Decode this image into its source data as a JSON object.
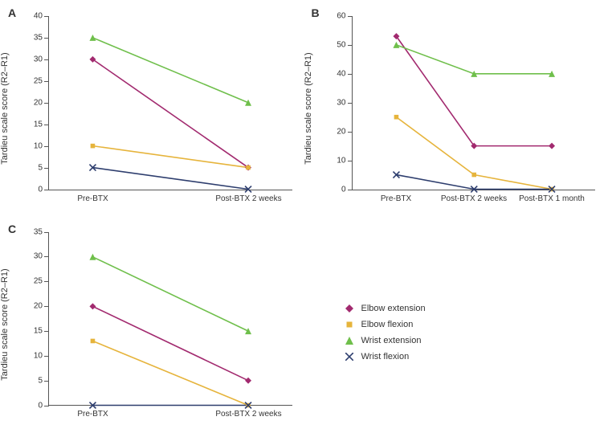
{
  "figure": {
    "background_color": "#ffffff",
    "axis_color": "#555555",
    "tick_fontsize": 10,
    "axis_label_fontsize": 11,
    "panel_label_fontsize": 14,
    "line_width": 1.6,
    "marker_size": 8
  },
  "series_styles": {
    "elbow_extension": {
      "label": "Elbow extension",
      "color": "#a22a6f",
      "marker": "diamond"
    },
    "elbow_flexion": {
      "label": "Elbow flexion",
      "color": "#e6b43c",
      "marker": "square"
    },
    "wrist_extension": {
      "label": "Wrist extension",
      "color": "#6fbf4b",
      "marker": "triangle"
    },
    "wrist_flexion": {
      "label": "Wrist flexion",
      "color": "#2e3e6e",
      "marker": "x"
    }
  },
  "panels": {
    "A": {
      "label": "A",
      "y_label": "Tardieu scale score (R2–R1)",
      "ylim": [
        0,
        40
      ],
      "ytick_step": 5,
      "x_categories": [
        "Pre-BTX",
        "Post-BTX 2 weeks"
      ],
      "series": {
        "elbow_extension": [
          30,
          5
        ],
        "elbow_flexion": [
          10,
          5
        ],
        "wrist_extension": [
          35,
          20
        ],
        "wrist_flexion": [
          5,
          0
        ]
      }
    },
    "B": {
      "label": "B",
      "y_label": "Tardieu scale score (R2–R1)",
      "ylim": [
        0,
        60
      ],
      "ytick_step": 10,
      "x_categories": [
        "Pre-BTX",
        "Post-BTX 2 weeks",
        "Post-BTX 1 month"
      ],
      "series": {
        "elbow_extension": [
          53,
          15,
          15
        ],
        "elbow_flexion": [
          25,
          5,
          0
        ],
        "wrist_extension": [
          50,
          40,
          40
        ],
        "wrist_flexion": [
          5,
          0,
          0
        ]
      }
    },
    "C": {
      "label": "C",
      "y_label": "Tardieu scale score (R2–R1)",
      "ylim": [
        0,
        35
      ],
      "ytick_step": 5,
      "x_categories": [
        "Pre-BTX",
        "Post-BTX 2 weeks"
      ],
      "series": {
        "elbow_extension": [
          20,
          5
        ],
        "elbow_flexion": [
          13,
          0
        ],
        "wrist_extension": [
          30,
          15
        ],
        "wrist_flexion": [
          0,
          0
        ]
      }
    }
  },
  "legend_order": [
    "elbow_extension",
    "elbow_flexion",
    "wrist_extension",
    "wrist_flexion"
  ]
}
